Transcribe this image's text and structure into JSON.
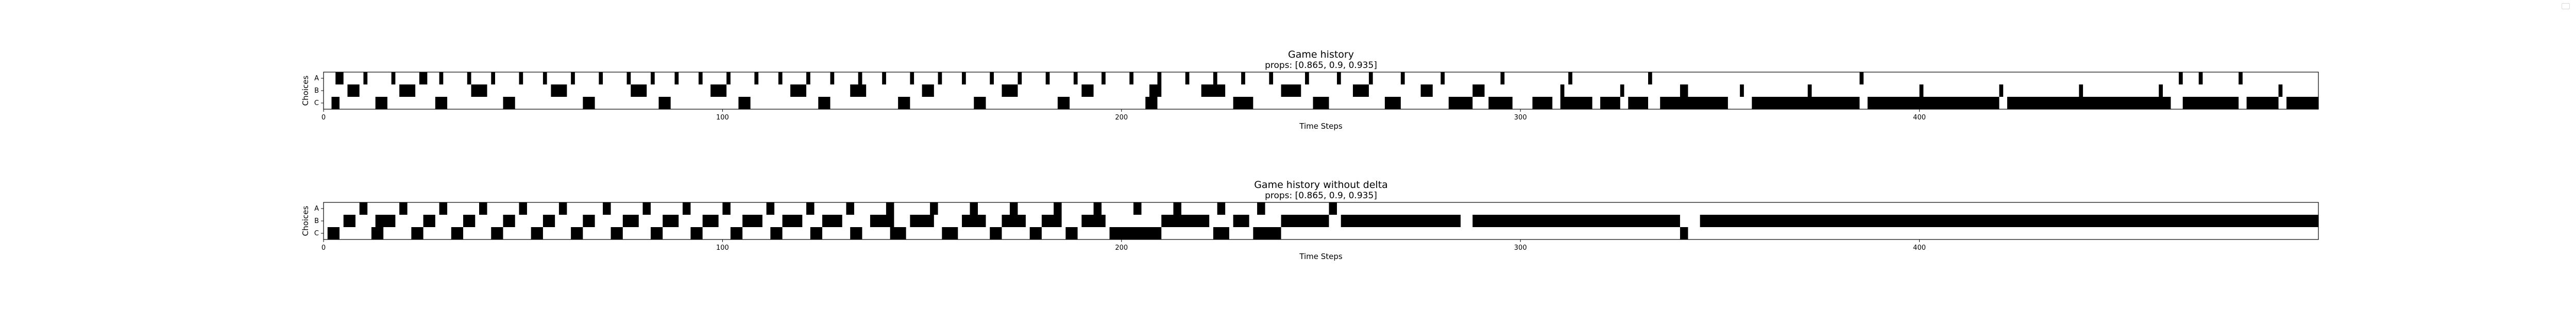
{
  "colors": {
    "filled": "#000000",
    "empty": "#ffffff",
    "frame": "#000000"
  },
  "chart_data": [
    {
      "type": "heatmap",
      "title": "Game history",
      "subtitle": "props: [0.865, 0.9, 0.935]",
      "xlabel": "Time Steps",
      "ylabel": "Choices",
      "rows": [
        "A",
        "B",
        "C"
      ],
      "xlim": [
        0,
        500
      ],
      "xticks": [
        0,
        100,
        200,
        300,
        400
      ],
      "cells": {
        "A": [
          [
            3,
            5
          ],
          [
            10,
            11
          ],
          [
            17,
            18
          ],
          [
            24,
            26
          ],
          [
            29,
            30
          ],
          [
            36,
            37
          ],
          [
            42,
            43
          ],
          [
            49,
            50
          ],
          [
            55,
            56
          ],
          [
            62,
            63
          ],
          [
            69,
            70
          ],
          [
            76,
            77
          ],
          [
            82,
            83
          ],
          [
            88,
            89
          ],
          [
            94,
            95
          ],
          [
            101,
            102
          ],
          [
            108,
            109
          ],
          [
            114,
            115
          ],
          [
            121,
            122
          ],
          [
            127,
            128
          ],
          [
            134,
            135
          ],
          [
            140,
            141
          ],
          [
            147,
            148
          ],
          [
            154,
            155
          ],
          [
            160,
            161
          ],
          [
            167,
            168
          ],
          [
            174,
            175
          ],
          [
            181,
            182
          ],
          [
            188,
            189
          ],
          [
            195,
            196
          ],
          [
            202,
            203
          ],
          [
            209,
            210
          ],
          [
            216,
            217
          ],
          [
            223,
            224
          ],
          [
            230,
            231
          ],
          [
            237,
            238
          ],
          [
            246,
            247
          ],
          [
            254,
            255
          ],
          [
            262,
            263
          ],
          [
            270,
            271
          ],
          [
            280,
            281
          ],
          [
            295,
            296
          ],
          [
            312,
            313
          ],
          [
            332,
            333
          ],
          [
            385,
            386
          ],
          [
            465,
            466
          ],
          [
            470,
            471
          ],
          [
            480,
            481
          ]
        ],
        "B": [
          [
            6,
            9
          ],
          [
            19,
            23
          ],
          [
            37,
            41
          ],
          [
            57,
            61
          ],
          [
            77,
            81
          ],
          [
            97,
            101
          ],
          [
            117,
            121
          ],
          [
            132,
            136
          ],
          [
            150,
            153
          ],
          [
            170,
            174
          ],
          [
            190,
            193
          ],
          [
            207,
            210
          ],
          [
            220,
            226
          ],
          [
            240,
            245
          ],
          [
            258,
            262
          ],
          [
            275,
            278
          ],
          [
            288,
            291
          ],
          [
            310,
            311
          ],
          [
            325,
            326
          ],
          [
            340,
            342
          ],
          [
            355,
            356
          ],
          [
            372,
            373
          ],
          [
            400,
            401
          ],
          [
            420,
            421
          ],
          [
            440,
            441
          ],
          [
            460,
            461
          ],
          [
            490,
            491
          ]
        ],
        "C": [
          [
            2,
            4
          ],
          [
            13,
            16
          ],
          [
            28,
            31
          ],
          [
            45,
            48
          ],
          [
            65,
            68
          ],
          [
            84,
            87
          ],
          [
            104,
            107
          ],
          [
            124,
            127
          ],
          [
            144,
            147
          ],
          [
            163,
            166
          ],
          [
            184,
            187
          ],
          [
            206,
            209
          ],
          [
            228,
            233
          ],
          [
            248,
            252
          ],
          [
            266,
            270
          ],
          [
            282,
            288
          ],
          [
            292,
            298
          ],
          [
            303,
            308
          ],
          [
            310,
            318
          ],
          [
            320,
            325
          ],
          [
            327,
            332
          ],
          [
            335,
            352
          ],
          [
            358,
            385
          ],
          [
            387,
            420
          ],
          [
            422,
            463
          ],
          [
            466,
            480
          ],
          [
            482,
            490
          ],
          [
            492,
            500
          ]
        ]
      }
    },
    {
      "type": "heatmap",
      "title": "Game history without delta",
      "subtitle": "props: [0.865, 0.9, 0.935]",
      "xlabel": "Time Steps",
      "ylabel": "Choices",
      "rows": [
        "A",
        "B",
        "C"
      ],
      "xlim": [
        0,
        500
      ],
      "xticks": [
        0,
        100,
        200,
        300,
        400
      ],
      "cells": {
        "A": [
          [
            9,
            11
          ],
          [
            19,
            21
          ],
          [
            29,
            31
          ],
          [
            39,
            41
          ],
          [
            49,
            51
          ],
          [
            59,
            61
          ],
          [
            70,
            72
          ],
          [
            80,
            82
          ],
          [
            90,
            92
          ],
          [
            100,
            102
          ],
          [
            111,
            113
          ],
          [
            121,
            123
          ],
          [
            131,
            133
          ],
          [
            141,
            143
          ],
          [
            152,
            154
          ],
          [
            162,
            164
          ],
          [
            172,
            174
          ],
          [
            183,
            185
          ],
          [
            193,
            195
          ],
          [
            203,
            205
          ],
          [
            213,
            215
          ],
          [
            224,
            226
          ],
          [
            234,
            236
          ],
          [
            252,
            254
          ]
        ],
        "B": [
          [
            5,
            8
          ],
          [
            13,
            18
          ],
          [
            25,
            28
          ],
          [
            35,
            38
          ],
          [
            45,
            48
          ],
          [
            55,
            58
          ],
          [
            65,
            68
          ],
          [
            75,
            79
          ],
          [
            85,
            89
          ],
          [
            95,
            99
          ],
          [
            105,
            110
          ],
          [
            115,
            120
          ],
          [
            125,
            130
          ],
          [
            137,
            143
          ],
          [
            147,
            153
          ],
          [
            160,
            166
          ],
          [
            170,
            176
          ],
          [
            180,
            185
          ],
          [
            190,
            196
          ],
          [
            210,
            222
          ],
          [
            228,
            232
          ],
          [
            240,
            252
          ],
          [
            255,
            285
          ],
          [
            288,
            340
          ],
          [
            345,
            500
          ]
        ],
        "C": [
          [
            1,
            4
          ],
          [
            12,
            15
          ],
          [
            22,
            25
          ],
          [
            32,
            35
          ],
          [
            42,
            45
          ],
          [
            52,
            55
          ],
          [
            62,
            65
          ],
          [
            72,
            75
          ],
          [
            82,
            85
          ],
          [
            92,
            95
          ],
          [
            102,
            105
          ],
          [
            112,
            115
          ],
          [
            122,
            125
          ],
          [
            132,
            135
          ],
          [
            142,
            146
          ],
          [
            155,
            159
          ],
          [
            167,
            170
          ],
          [
            177,
            180
          ],
          [
            186,
            189
          ],
          [
            197,
            210
          ],
          [
            223,
            227
          ],
          [
            233,
            240
          ],
          [
            340,
            342
          ]
        ]
      }
    }
  ]
}
